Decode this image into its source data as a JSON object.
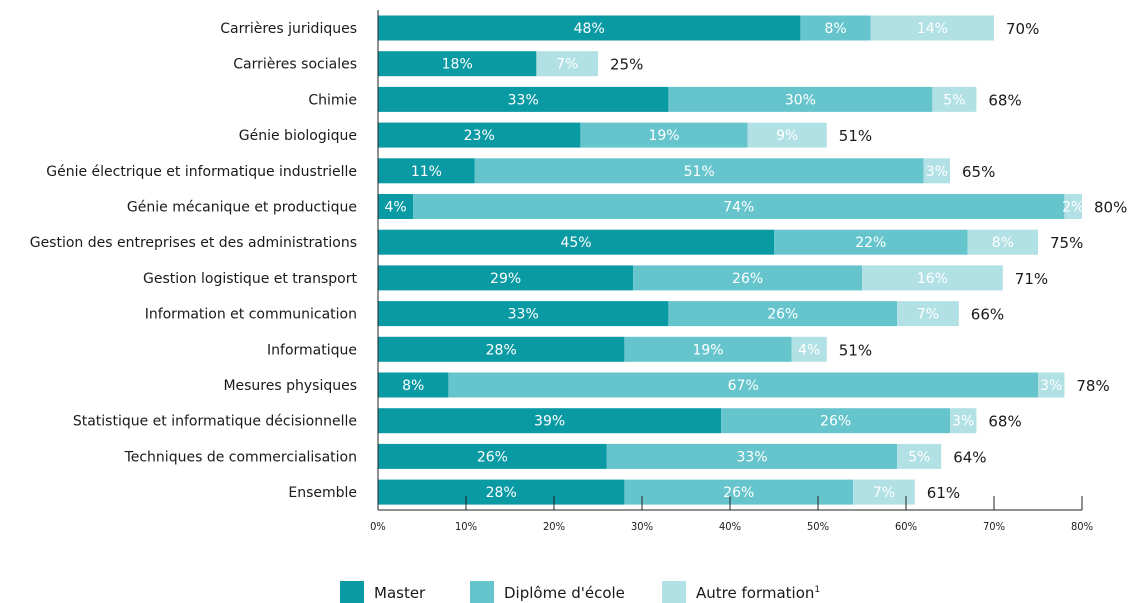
{
  "chart_data": {
    "type": "bar",
    "orientation": "horizontal",
    "stacked": true,
    "categories": [
      "Carrières juridiques",
      "Carrières sociales",
      "Chimie",
      "Génie biologique",
      "Génie électrique et informatique industrielle",
      "Génie mécanique et productique",
      "Gestion des entreprises et des administrations",
      "Gestion logistique et transport",
      "Information et communication",
      "Informatique",
      "Mesures physiques",
      "Statistique et informatique décisionnelle",
      "Techniques de commercialisation",
      "Ensemble"
    ],
    "series": [
      {
        "name": "Master",
        "color": "#0a9aa4",
        "values": [
          48,
          18,
          33,
          23,
          11,
          4,
          45,
          29,
          33,
          28,
          8,
          39,
          26,
          28
        ]
      },
      {
        "name": "Diplôme d'école",
        "color": "#66c5cc",
        "values": [
          8,
          null,
          30,
          19,
          51,
          74,
          22,
          26,
          26,
          19,
          67,
          26,
          33,
          26
        ]
      },
      {
        "name": "Autre formation",
        "name_suffix": "1",
        "color": "#b2e1e5",
        "values": [
          14,
          7,
          5,
          9,
          3,
          2,
          8,
          16,
          7,
          4,
          3,
          3,
          5,
          7
        ]
      }
    ],
    "segment_labels": [
      [
        "48%",
        "8%",
        "14%"
      ],
      [
        "18%",
        "",
        "7%"
      ],
      [
        "33%",
        "30%",
        "5%"
      ],
      [
        "23%",
        "19%",
        "9%"
      ],
      [
        "11%",
        "51%",
        "3%"
      ],
      [
        "4%",
        "74%",
        "2%"
      ],
      [
        "45%",
        "22%",
        "8%"
      ],
      [
        "29%",
        "26%",
        "16%"
      ],
      [
        "33%",
        "26%",
        "7%"
      ],
      [
        "28%",
        "19%",
        "4%"
      ],
      [
        "8%",
        "67%",
        "3%"
      ],
      [
        "39%",
        "26%",
        "3%"
      ],
      [
        "26%",
        "33%",
        "5%"
      ],
      [
        "28%",
        "26%",
        "7%"
      ]
    ],
    "totals": [
      "70%",
      "25%",
      "68%",
      "51%",
      "65%",
      "80%",
      "75%",
      "71%",
      "66%",
      "51%",
      "78%",
      "68%",
      "64%",
      "61%"
    ],
    "xlim": [
      0,
      80
    ],
    "xticks": [
      0,
      10,
      20,
      30,
      40,
      50,
      60,
      70,
      80
    ],
    "xtick_labels": [
      "0%",
      "10%",
      "20%",
      "30%",
      "40%",
      "50%",
      "60%",
      "70%",
      "80%"
    ],
    "legend_position": "bottom",
    "grid": false
  }
}
